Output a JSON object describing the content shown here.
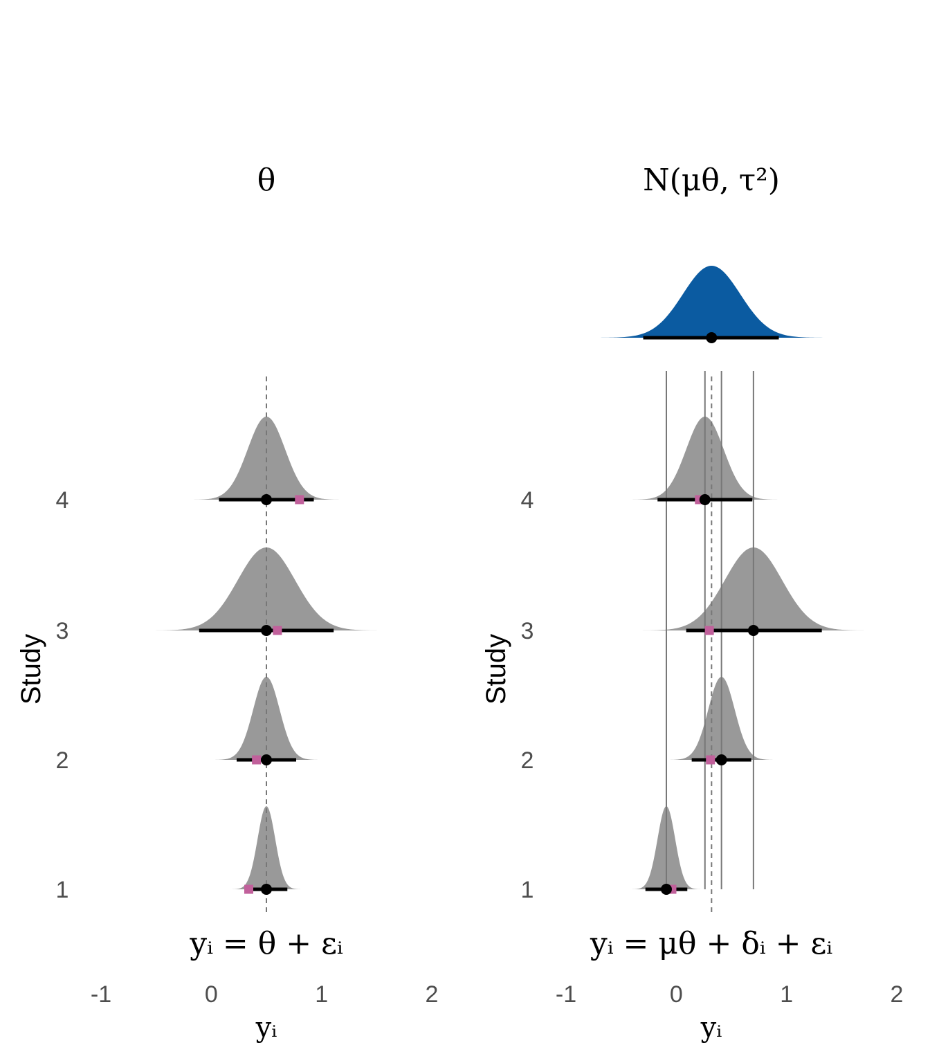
{
  "chart_data": [
    {
      "type": "density_ridgeline",
      "title": "θ",
      "formula": "yᵢ = θ + εᵢ",
      "xlabel": "yᵢ",
      "ylabel": "Study",
      "xlim": [
        -1,
        2
      ],
      "x_ticks": [
        "-1",
        "0",
        "1",
        "2"
      ],
      "y_ticks": [
        "1",
        "2",
        "3",
        "4"
      ],
      "reference_line": {
        "x": 0.5,
        "style": "dashed"
      },
      "studies": [
        {
          "study": "1",
          "mean": 0.5,
          "sd": 0.08,
          "interval": [
            0.31,
            0.69
          ],
          "observed": 0.34
        },
        {
          "study": "2",
          "mean": 0.5,
          "sd": 0.12,
          "interval": [
            0.23,
            0.77
          ],
          "observed": 0.41
        },
        {
          "study": "3",
          "mean": 0.5,
          "sd": 0.26,
          "interval": [
            -0.11,
            1.11
          ],
          "observed": 0.6
        },
        {
          "study": "4",
          "mean": 0.5,
          "sd": 0.17,
          "interval": [
            0.07,
            0.93
          ],
          "observed": 0.8
        }
      ],
      "colors": {
        "density": "#999999",
        "observed": "#c1609b",
        "estimate": "#000000",
        "reference": "#777777"
      }
    },
    {
      "type": "density_ridgeline",
      "title": "N(μθ, τ²)",
      "formula": "yᵢ = μθ + δᵢ + εᵢ",
      "xlabel": "yᵢ",
      "ylabel": "Study",
      "xlim": [
        -1,
        2
      ],
      "x_ticks": [
        "-1",
        "0",
        "1",
        "2"
      ],
      "y_ticks": [
        "1",
        "2",
        "3",
        "4"
      ],
      "population": {
        "mean": 0.32,
        "sd": 0.26,
        "interval": [
          -0.3,
          0.93
        ],
        "color": "#0b5ba1"
      },
      "reference_line": {
        "x": 0.32,
        "style": "dashed"
      },
      "studies": [
        {
          "study": "1",
          "mean": -0.09,
          "sd": 0.08,
          "interval": [
            -0.28,
            0.1
          ],
          "observed": -0.04
        },
        {
          "study": "2",
          "mean": 0.41,
          "sd": 0.12,
          "interval": [
            0.14,
            0.68
          ],
          "observed": 0.31
        },
        {
          "study": "3",
          "mean": 0.7,
          "sd": 0.26,
          "interval": [
            0.09,
            1.32
          ],
          "observed": 0.3
        },
        {
          "study": "4",
          "mean": 0.26,
          "sd": 0.17,
          "interval": [
            -0.17,
            0.69
          ],
          "observed": 0.21
        }
      ],
      "colors": {
        "density": "#999999",
        "observed": "#c1609b",
        "estimate": "#000000",
        "reference": "#777777",
        "study_line": "#777777"
      }
    }
  ]
}
